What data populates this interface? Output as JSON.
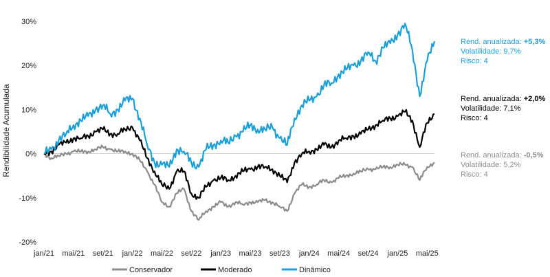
{
  "chart_data": {
    "type": "line",
    "ylabel": "Rendibilidade Acumulada",
    "ylim": [
      -20,
      30
    ],
    "y_ticks": [
      "-20%",
      "-10%",
      "0%",
      "10%",
      "20%",
      "30%"
    ],
    "y_tick_values": [
      -20,
      -10,
      0,
      10,
      20,
      30
    ],
    "x_ticks": [
      "jan/21",
      "mai/21",
      "set/21",
      "jan/22",
      "mai/22",
      "set/22",
      "jan/23",
      "mai/23",
      "set/23",
      "jan/24",
      "mai/24",
      "set/24",
      "jan/25",
      "mai/25"
    ],
    "x_tick_dates": [
      "2021-01",
      "2021-05",
      "2021-09",
      "2022-01",
      "2022-05",
      "2022-09",
      "2023-01",
      "2023-05",
      "2023-09",
      "2024-01",
      "2024-05",
      "2024-09",
      "2025-01",
      "2025-05"
    ],
    "xlim": [
      "2021-01",
      "2025-06"
    ],
    "grid": false,
    "legend_position": "bottom",
    "x": [
      "2021-01",
      "2021-02",
      "2021-03",
      "2021-04",
      "2021-05",
      "2021-06",
      "2021-07",
      "2021-08",
      "2021-09",
      "2021-10",
      "2021-11",
      "2021-12",
      "2022-01",
      "2022-02",
      "2022-03",
      "2022-04",
      "2022-05",
      "2022-06",
      "2022-07",
      "2022-08",
      "2022-09",
      "2022-10",
      "2022-11",
      "2022-12",
      "2023-01",
      "2023-02",
      "2023-03",
      "2023-04",
      "2023-05",
      "2023-06",
      "2023-07",
      "2023-08",
      "2023-09",
      "2023-10",
      "2023-11",
      "2023-12",
      "2024-01",
      "2024-02",
      "2024-03",
      "2024-04",
      "2024-05",
      "2024-06",
      "2024-07",
      "2024-08",
      "2024-09",
      "2024-10",
      "2024-11",
      "2024-12",
      "2025-01",
      "2025-02",
      "2025-03",
      "2025-04",
      "2025-05",
      "2025-06"
    ],
    "series": [
      {
        "name": "Conservador",
        "color": "#8c8c8c",
        "values": [
          0,
          -1,
          -0.5,
          0,
          0.5,
          0.5,
          0.5,
          1,
          1.5,
          1,
          0.5,
          0.5,
          0,
          -1.5,
          -4,
          -7,
          -11,
          -12,
          -9,
          -8,
          -13,
          -15,
          -13,
          -12,
          -11,
          -12,
          -11,
          -11.5,
          -11,
          -11,
          -10.5,
          -11,
          -12,
          -13,
          -9,
          -7,
          -7.5,
          -7,
          -6,
          -6.5,
          -5.5,
          -5,
          -4.5,
          -4,
          -3.5,
          -3.5,
          -3,
          -3,
          -2.5,
          -2.5,
          -3,
          -6,
          -3,
          -2
        ]
      },
      {
        "name": "Moderado",
        "color": "#000000",
        "values": [
          0,
          0.5,
          2,
          2.5,
          3.5,
          3.5,
          4,
          5,
          5.5,
          4.5,
          4.5,
          5.5,
          6,
          3,
          -1,
          -4,
          -7,
          -8,
          -4,
          -4,
          -9,
          -10,
          -7.5,
          -6,
          -5.5,
          -6,
          -5,
          -4,
          -3.5,
          -3,
          -3,
          -3.5,
          -5,
          -6.5,
          -2,
          0,
          0.5,
          1,
          2,
          1.5,
          3,
          3.5,
          4,
          4.5,
          5.5,
          6.5,
          7.5,
          8,
          8.5,
          9.5,
          7.5,
          1.5,
          7,
          9
        ]
      },
      {
        "name": "Dinâmico",
        "color": "#1a9fd9",
        "values": [
          0,
          1,
          3,
          4.5,
          6.5,
          7.5,
          8.5,
          10,
          11,
          9,
          10,
          12,
          12.5,
          8,
          2,
          -2,
          -2.5,
          -3,
          1,
          0.5,
          -2,
          -3,
          1,
          2,
          3,
          2.5,
          4,
          5,
          6.5,
          5.5,
          5.5,
          6,
          3.5,
          2,
          8,
          11,
          12,
          13,
          15.5,
          16,
          18,
          19,
          20,
          21,
          23,
          21,
          24,
          25,
          27,
          29.5,
          23.5,
          13,
          21,
          25.5
        ]
      }
    ],
    "annotations": [
      {
        "series": "Dinâmico",
        "line1_prefix": "Rend. anualizada: ",
        "line1_value": "+5,3%",
        "line2": "Volatilidade: 9,7%",
        "line3": "Risco: 4",
        "color": "#1a9fd9"
      },
      {
        "series": "Moderado",
        "line1_prefix": "Rend. anualizada: ",
        "line1_value": "+2,0%",
        "line2": "Volatilidade: 7,1%",
        "line3": "Risco: 4",
        "color": "#000000"
      },
      {
        "series": "Conservador",
        "line1_prefix": "Rend. anualizada: ",
        "line1_value": "-0,5%",
        "line2": "Volatilidade: 5,2%",
        "line3": "Risco: 4",
        "color": "#8c8c8c"
      }
    ]
  }
}
